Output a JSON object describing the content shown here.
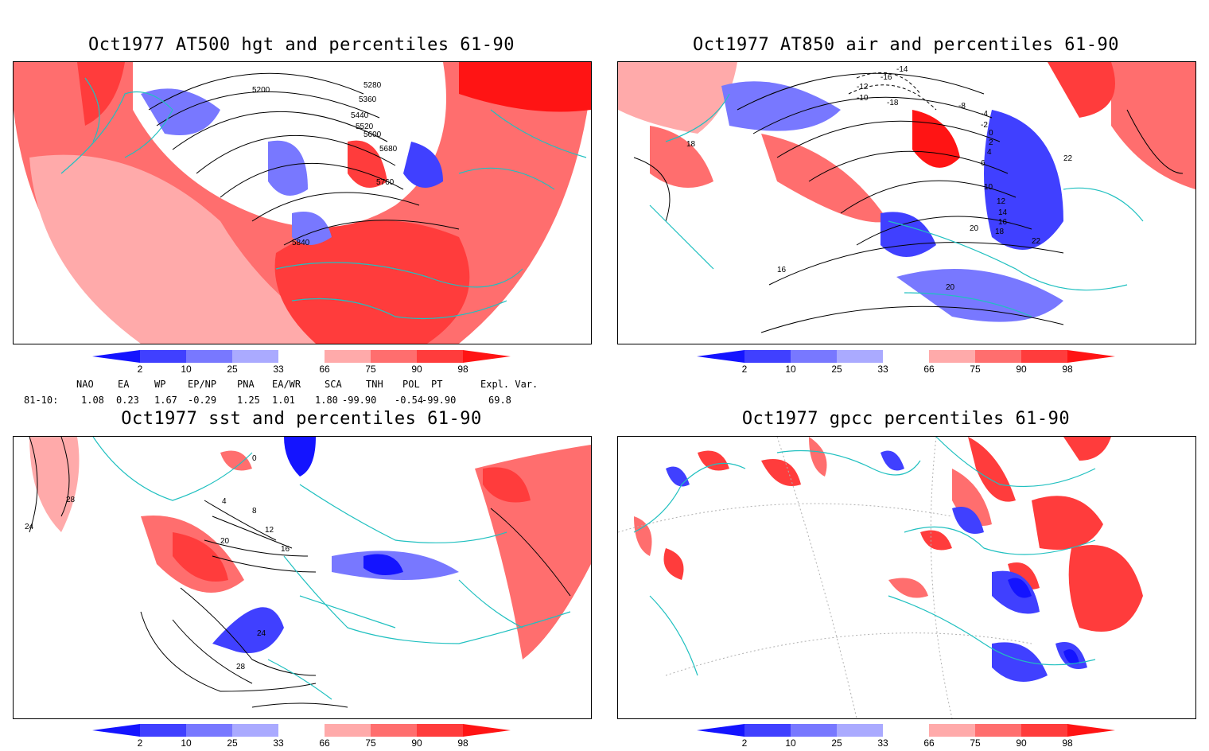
{
  "panels": [
    {
      "id": "p1",
      "title": "Oct1977 AT500 hgt and percentiles 61-90",
      "contour_labels": [
        "5200",
        "5280",
        "5360",
        "5440",
        "5520",
        "5600",
        "5680",
        "5760",
        "5840"
      ]
    },
    {
      "id": "p2",
      "title": "Oct1977 AT850 air and percentiles 61-90",
      "contour_labels": [
        "-14",
        "-16",
        "-12",
        "-10",
        "-18",
        "-8",
        "-4",
        "-2",
        "0",
        "2",
        "4",
        "6",
        "10",
        "12",
        "14",
        "16",
        "18",
        "20",
        "22",
        "16",
        "18",
        "20",
        "22"
      ]
    },
    {
      "id": "p3",
      "title": "Oct1977 sst and percentiles 61-90",
      "contour_labels": [
        "24",
        "28",
        "0",
        "4",
        "8",
        "12",
        "16",
        "20",
        "24",
        "28"
      ]
    },
    {
      "id": "p4",
      "title": "Oct1977 gpcc percentiles 61-90",
      "contour_labels": []
    }
  ],
  "colorbar": {
    "labels": [
      "2",
      "10",
      "25",
      "33",
      "66",
      "75",
      "90",
      "98"
    ],
    "colors": {
      "below": [
        "#1414ff",
        "#4040ff",
        "#7878ff",
        "#aaaaff"
      ],
      "above": [
        "#ffaaaa",
        "#ff6e6e",
        "#ff3c3c",
        "#ff1414"
      ],
      "mid": "#ffffff"
    }
  },
  "indices": {
    "headers": [
      "NAO",
      "EA",
      "WP",
      "EP/NP",
      "PNA",
      "EA/WR",
      "SCA",
      "TNH",
      "POL",
      "PT",
      "Expl. Var."
    ],
    "row_label": "81-10:",
    "values": [
      "1.08",
      "0.23",
      "1.67",
      "-0.29",
      "1.25",
      "1.01",
      "1.80",
      "-99.90",
      "-0.54",
      "-99.90",
      "69.8"
    ]
  },
  "colors": {
    "coast": "#20c0c0",
    "contour": "#000000",
    "frame": "#000000"
  }
}
